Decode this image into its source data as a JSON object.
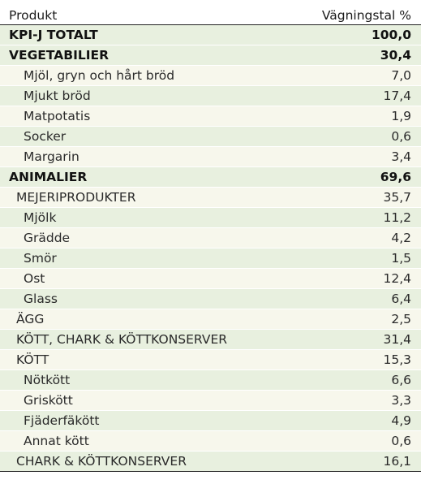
{
  "header": {
    "col_product": "Produkt",
    "col_weight": "Vägningstal %"
  },
  "rows": [
    {
      "label": "KPI-J TOTALT",
      "value": "100,0"
    },
    {
      "label": "VEGETABILIER",
      "value": "30,4"
    },
    {
      "label": "Mjöl, gryn och hårt bröd",
      "value": "7,0"
    },
    {
      "label": "Mjukt bröd",
      "value": "17,4"
    },
    {
      "label": "Matpotatis",
      "value": "1,9"
    },
    {
      "label": "Socker",
      "value": "0,6"
    },
    {
      "label": "Margarin",
      "value": "3,4"
    },
    {
      "label": "ANIMALIER",
      "value": "69,6"
    },
    {
      "label": "MEJERIPRODUKTER",
      "value": "35,7"
    },
    {
      "label": "Mjölk",
      "value": "11,2"
    },
    {
      "label": "Grädde",
      "value": "4,2"
    },
    {
      "label": "Smör",
      "value": "1,5"
    },
    {
      "label": "Ost",
      "value": "12,4"
    },
    {
      "label": "Glass",
      "value": "6,4"
    },
    {
      "label": "ÄGG",
      "value": "2,5"
    },
    {
      "label": "KÖTT, CHARK & KÖTTKONSERVER",
      "value": "31,4"
    },
    {
      "label": "KÖTT",
      "value": "15,3"
    },
    {
      "label": "Nötkött",
      "value": "6,6"
    },
    {
      "label": "Griskött",
      "value": "3,3"
    },
    {
      "label": "Fjäderfäkött",
      "value": "4,9"
    },
    {
      "label": "Annat kött",
      "value": "0,6"
    },
    {
      "label": "CHARK & KÖTTKONSERVER",
      "value": "16,1"
    }
  ]
}
